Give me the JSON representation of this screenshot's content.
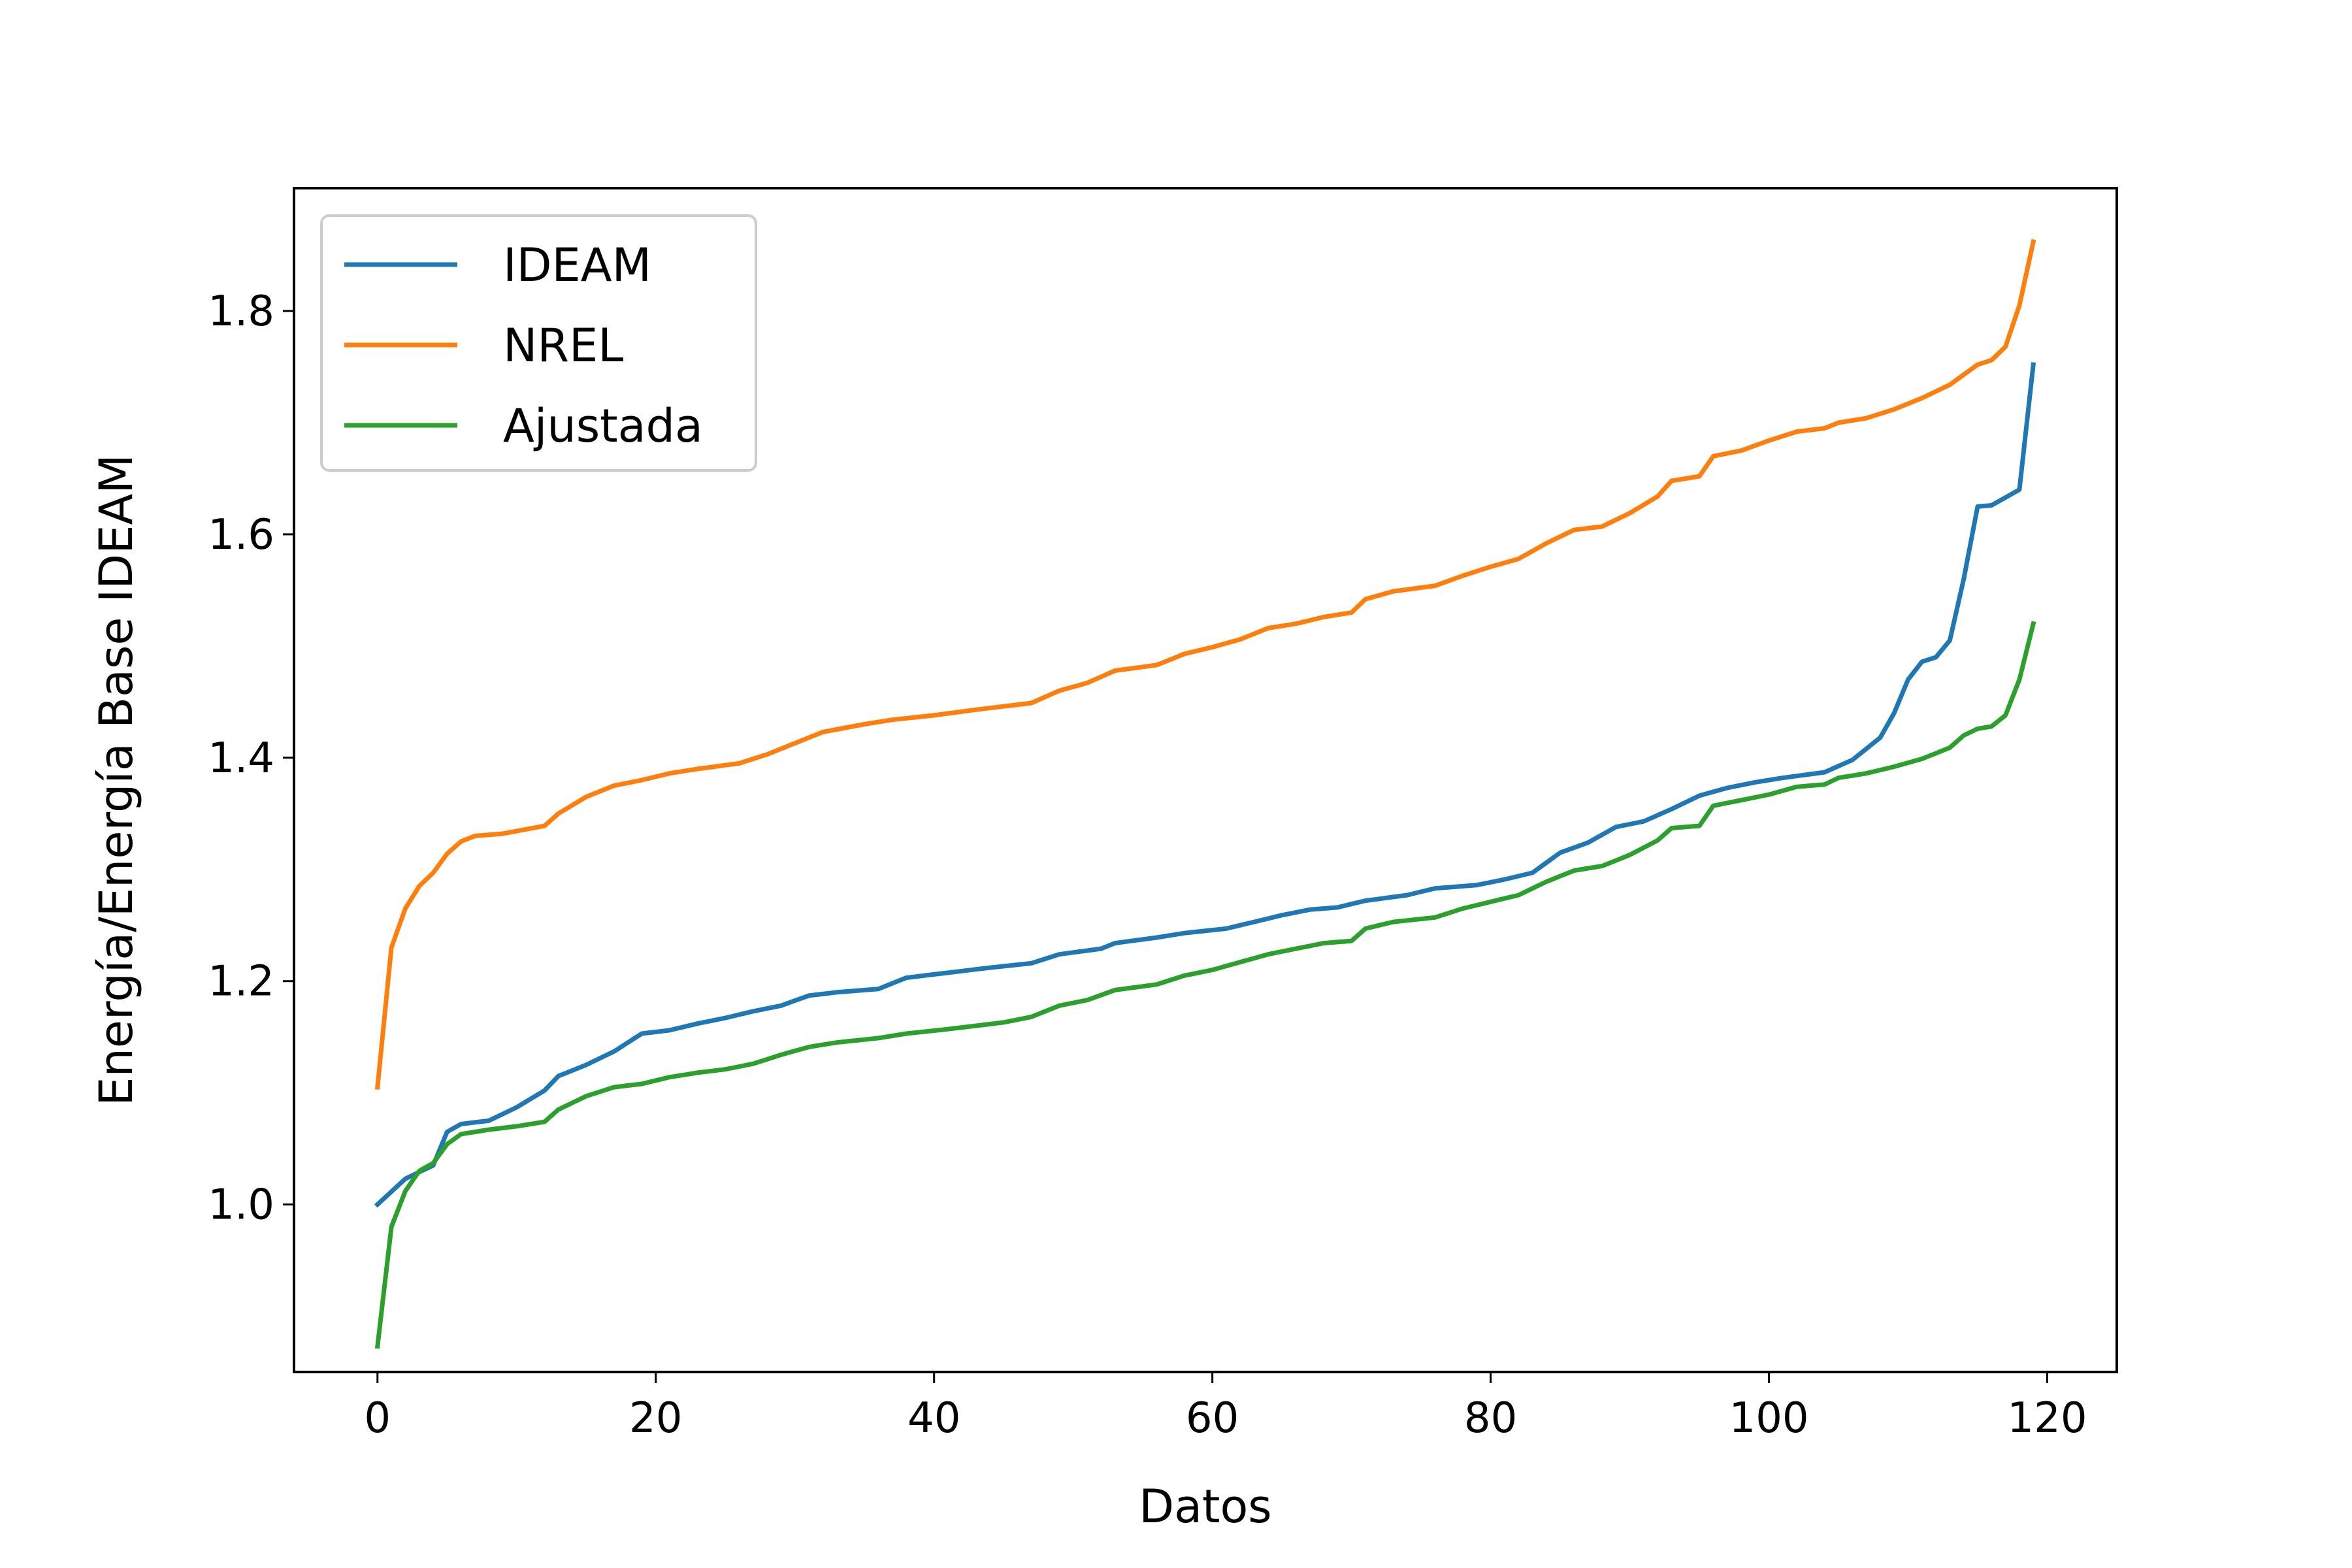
{
  "chart_data": {
    "type": "line",
    "title": "",
    "xlabel": "Datos",
    "ylabel": "Energía/Energía Base IDEAM",
    "xlim": [
      -6,
      125
    ],
    "ylim": [
      0.85,
      1.91
    ],
    "xticks": [
      0,
      20,
      40,
      60,
      80,
      100,
      120
    ],
    "yticks": [
      1.0,
      1.2,
      1.4,
      1.6,
      1.8
    ],
    "xtick_labels": [
      "0",
      "20",
      "40",
      "60",
      "80",
      "100",
      "120"
    ],
    "ytick_labels": [
      "1.0",
      "1.2",
      "1.4",
      "1.6",
      "1.8"
    ],
    "grid": false,
    "legend_position": "top-left",
    "x_start": 0,
    "series": [
      {
        "name": "IDEAM",
        "color": "#1f77b4",
        "knots": [
          [
            0,
            1.0
          ],
          [
            2,
            1.023
          ],
          [
            4,
            1.035
          ],
          [
            5,
            1.065
          ],
          [
            6,
            1.072
          ],
          [
            8,
            1.075
          ],
          [
            10,
            1.087
          ],
          [
            12,
            1.102
          ],
          [
            13,
            1.115
          ],
          [
            15,
            1.125
          ],
          [
            17,
            1.137
          ],
          [
            19,
            1.153
          ],
          [
            21,
            1.156
          ],
          [
            23,
            1.162
          ],
          [
            25,
            1.167
          ],
          [
            27,
            1.173
          ],
          [
            29,
            1.178
          ],
          [
            31,
            1.187
          ],
          [
            33,
            1.19
          ],
          [
            36,
            1.193
          ],
          [
            38,
            1.203
          ],
          [
            40,
            1.206
          ],
          [
            42,
            1.209
          ],
          [
            44,
            1.212
          ],
          [
            47,
            1.216
          ],
          [
            49,
            1.224
          ],
          [
            52,
            1.229
          ],
          [
            53,
            1.234
          ],
          [
            56,
            1.239
          ],
          [
            58,
            1.243
          ],
          [
            61,
            1.247
          ],
          [
            63,
            1.253
          ],
          [
            65,
            1.259
          ],
          [
            67,
            1.264
          ],
          [
            69,
            1.266
          ],
          [
            71,
            1.272
          ],
          [
            74,
            1.277
          ],
          [
            76,
            1.283
          ],
          [
            79,
            1.286
          ],
          [
            81,
            1.291
          ],
          [
            83,
            1.297
          ],
          [
            85,
            1.315
          ],
          [
            87,
            1.324
          ],
          [
            89,
            1.338
          ],
          [
            91,
            1.343
          ],
          [
            93,
            1.354
          ],
          [
            95,
            1.366
          ],
          [
            97,
            1.373
          ],
          [
            99,
            1.378
          ],
          [
            101,
            1.382
          ],
          [
            104,
            1.387
          ],
          [
            106,
            1.398
          ],
          [
            108,
            1.418
          ],
          [
            109,
            1.44
          ],
          [
            110,
            1.47
          ],
          [
            111,
            1.486
          ],
          [
            112,
            1.49
          ],
          [
            113,
            1.505
          ],
          [
            114,
            1.56
          ],
          [
            115,
            1.625
          ],
          [
            116,
            1.626
          ],
          [
            118,
            1.64
          ],
          [
            119,
            1.752
          ]
        ]
      },
      {
        "name": "NREL",
        "color": "#ff7f0e",
        "knots": [
          [
            0,
            1.105
          ],
          [
            1,
            1.23
          ],
          [
            2,
            1.265
          ],
          [
            3,
            1.285
          ],
          [
            4,
            1.297
          ],
          [
            5,
            1.314
          ],
          [
            6,
            1.325
          ],
          [
            7,
            1.33
          ],
          [
            9,
            1.332
          ],
          [
            12,
            1.339
          ],
          [
            13,
            1.35
          ],
          [
            15,
            1.365
          ],
          [
            17,
            1.375
          ],
          [
            19,
            1.38
          ],
          [
            21,
            1.386
          ],
          [
            23,
            1.39
          ],
          [
            26,
            1.395
          ],
          [
            28,
            1.403
          ],
          [
            30,
            1.413
          ],
          [
            32,
            1.423
          ],
          [
            35,
            1.43
          ],
          [
            37,
            1.434
          ],
          [
            40,
            1.438
          ],
          [
            43,
            1.443
          ],
          [
            47,
            1.449
          ],
          [
            49,
            1.46
          ],
          [
            51,
            1.467
          ],
          [
            53,
            1.478
          ],
          [
            56,
            1.483
          ],
          [
            58,
            1.493
          ],
          [
            60,
            1.499
          ],
          [
            62,
            1.506
          ],
          [
            64,
            1.516
          ],
          [
            66,
            1.52
          ],
          [
            68,
            1.526
          ],
          [
            70,
            1.53
          ],
          [
            71,
            1.542
          ],
          [
            73,
            1.549
          ],
          [
            76,
            1.554
          ],
          [
            78,
            1.563
          ],
          [
            80,
            1.571
          ],
          [
            82,
            1.578
          ],
          [
            84,
            1.592
          ],
          [
            86,
            1.604
          ],
          [
            88,
            1.607
          ],
          [
            90,
            1.619
          ],
          [
            92,
            1.634
          ],
          [
            93,
            1.648
          ],
          [
            95,
            1.652
          ],
          [
            96,
            1.67
          ],
          [
            98,
            1.675
          ],
          [
            100,
            1.684
          ],
          [
            102,
            1.692
          ],
          [
            104,
            1.695
          ],
          [
            105,
            1.7
          ],
          [
            107,
            1.704
          ],
          [
            109,
            1.712
          ],
          [
            111,
            1.722
          ],
          [
            113,
            1.734
          ],
          [
            115,
            1.752
          ],
          [
            116,
            1.756
          ],
          [
            117,
            1.768
          ],
          [
            118,
            1.805
          ],
          [
            119,
            1.862
          ]
        ]
      },
      {
        "name": "Ajustada",
        "color": "#2ca02c",
        "knots": [
          [
            0,
            0.873
          ],
          [
            1,
            0.98
          ],
          [
            2,
            1.012
          ],
          [
            3,
            1.03
          ],
          [
            4,
            1.037
          ],
          [
            5,
            1.054
          ],
          [
            6,
            1.063
          ],
          [
            8,
            1.067
          ],
          [
            10,
            1.07
          ],
          [
            12,
            1.074
          ],
          [
            13,
            1.085
          ],
          [
            15,
            1.097
          ],
          [
            17,
            1.105
          ],
          [
            19,
            1.108
          ],
          [
            21,
            1.114
          ],
          [
            23,
            1.118
          ],
          [
            25,
            1.121
          ],
          [
            27,
            1.126
          ],
          [
            29,
            1.134
          ],
          [
            31,
            1.141
          ],
          [
            33,
            1.145
          ],
          [
            36,
            1.149
          ],
          [
            38,
            1.153
          ],
          [
            41,
            1.157
          ],
          [
            43,
            1.16
          ],
          [
            45,
            1.163
          ],
          [
            47,
            1.168
          ],
          [
            49,
            1.178
          ],
          [
            51,
            1.183
          ],
          [
            53,
            1.192
          ],
          [
            56,
            1.197
          ],
          [
            58,
            1.205
          ],
          [
            60,
            1.21
          ],
          [
            62,
            1.217
          ],
          [
            64,
            1.224
          ],
          [
            66,
            1.229
          ],
          [
            68,
            1.234
          ],
          [
            70,
            1.236
          ],
          [
            71,
            1.247
          ],
          [
            73,
            1.253
          ],
          [
            76,
            1.257
          ],
          [
            78,
            1.265
          ],
          [
            80,
            1.271
          ],
          [
            82,
            1.277
          ],
          [
            84,
            1.289
          ],
          [
            86,
            1.299
          ],
          [
            88,
            1.303
          ],
          [
            90,
            1.313
          ],
          [
            92,
            1.326
          ],
          [
            93,
            1.337
          ],
          [
            95,
            1.339
          ],
          [
            96,
            1.357
          ],
          [
            98,
            1.362
          ],
          [
            100,
            1.367
          ],
          [
            102,
            1.374
          ],
          [
            104,
            1.376
          ],
          [
            105,
            1.382
          ],
          [
            107,
            1.386
          ],
          [
            109,
            1.392
          ],
          [
            111,
            1.399
          ],
          [
            113,
            1.409
          ],
          [
            114,
            1.42
          ],
          [
            115,
            1.426
          ],
          [
            116,
            1.428
          ],
          [
            117,
            1.438
          ],
          [
            118,
            1.47
          ],
          [
            119,
            1.52
          ]
        ]
      }
    ]
  }
}
